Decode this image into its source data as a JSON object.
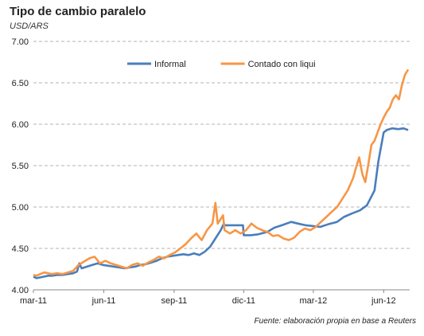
{
  "title": "Tipo de cambio paralelo",
  "subtitle": "USD/ARS",
  "source": "Fuente: elaboración propia en base a Reuters",
  "chart_data": {
    "type": "line",
    "ylim": [
      4.0,
      7.0
    ],
    "yticks": [
      "4.00",
      "4.50",
      "5.00",
      "5.50",
      "6.00",
      "6.50",
      "7.00"
    ],
    "ytick_values": [
      4.0,
      4.5,
      5.0,
      5.5,
      6.0,
      6.5,
      7.0
    ],
    "xlim": [
      "2011-03-01",
      "2012-07-05"
    ],
    "xticks": [
      {
        "label": "mar-11",
        "date": "2011-03-01"
      },
      {
        "label": "jun-11",
        "date": "2011-06-01"
      },
      {
        "label": "sep-11",
        "date": "2011-09-01"
      },
      {
        "label": "dic-11",
        "date": "2011-12-01"
      },
      {
        "label": "mar-12",
        "date": "2012-03-01"
      },
      {
        "label": "jun-12",
        "date": "2012-06-01"
      }
    ],
    "grid": "horizontal dashed",
    "legend_position": "top-center",
    "series": [
      {
        "name": "Informal",
        "color": "#4a7ebb",
        "points": [
          [
            "2011-03-01",
            4.16
          ],
          [
            "2011-03-05",
            4.14
          ],
          [
            "2011-03-10",
            4.15
          ],
          [
            "2011-03-15",
            4.16
          ],
          [
            "2011-03-20",
            4.17
          ],
          [
            "2011-03-25",
            4.17
          ],
          [
            "2011-04-01",
            4.18
          ],
          [
            "2011-04-08",
            4.18
          ],
          [
            "2011-04-15",
            4.19
          ],
          [
            "2011-04-22",
            4.2
          ],
          [
            "2011-04-27",
            4.22
          ],
          [
            "2011-04-30",
            4.32
          ],
          [
            "2011-05-03",
            4.26
          ],
          [
            "2011-05-10",
            4.28
          ],
          [
            "2011-05-17",
            4.3
          ],
          [
            "2011-05-24",
            4.32
          ],
          [
            "2011-05-31",
            4.3
          ],
          [
            "2011-06-07",
            4.29
          ],
          [
            "2011-06-14",
            4.28
          ],
          [
            "2011-06-21",
            4.27
          ],
          [
            "2011-06-28",
            4.26
          ],
          [
            "2011-07-05",
            4.27
          ],
          [
            "2011-07-12",
            4.28
          ],
          [
            "2011-07-19",
            4.3
          ],
          [
            "2011-07-26",
            4.31
          ],
          [
            "2011-08-02",
            4.33
          ],
          [
            "2011-08-09",
            4.35
          ],
          [
            "2011-08-16",
            4.38
          ],
          [
            "2011-08-23",
            4.4
          ],
          [
            "2011-08-30",
            4.41
          ],
          [
            "2011-09-06",
            4.42
          ],
          [
            "2011-09-13",
            4.43
          ],
          [
            "2011-09-20",
            4.42
          ],
          [
            "2011-09-27",
            4.44
          ],
          [
            "2011-10-04",
            4.42
          ],
          [
            "2011-10-11",
            4.46
          ],
          [
            "2011-10-18",
            4.52
          ],
          [
            "2011-10-25",
            4.62
          ],
          [
            "2011-11-01",
            4.72
          ],
          [
            "2011-11-05",
            4.8
          ],
          [
            "2011-11-06",
            4.78
          ],
          [
            "2011-11-30",
            4.78
          ],
          [
            "2011-12-01",
            4.66
          ],
          [
            "2011-12-10",
            4.66
          ],
          [
            "2011-12-20",
            4.67
          ],
          [
            "2012-01-01",
            4.7
          ],
          [
            "2012-01-10",
            4.75
          ],
          [
            "2012-01-20",
            4.78
          ],
          [
            "2012-02-01",
            4.82
          ],
          [
            "2012-02-10",
            4.8
          ],
          [
            "2012-02-20",
            4.78
          ],
          [
            "2012-03-01",
            4.77
          ],
          [
            "2012-03-10",
            4.76
          ],
          [
            "2012-03-20",
            4.79
          ],
          [
            "2012-04-01",
            4.82
          ],
          [
            "2012-04-10",
            4.88
          ],
          [
            "2012-04-20",
            4.92
          ],
          [
            "2012-05-01",
            4.96
          ],
          [
            "2012-05-10",
            5.02
          ],
          [
            "2012-05-20",
            5.2
          ],
          [
            "2012-05-25",
            5.55
          ],
          [
            "2012-06-01",
            5.9
          ],
          [
            "2012-06-05",
            5.93
          ],
          [
            "2012-06-12",
            5.95
          ],
          [
            "2012-06-20",
            5.94
          ],
          [
            "2012-06-27",
            5.95
          ],
          [
            "2012-07-03",
            5.93
          ]
        ]
      },
      {
        "name": "Contado con liqui",
        "color": "#f79646",
        "points": [
          [
            "2011-03-01",
            4.18
          ],
          [
            "2011-03-05",
            4.17
          ],
          [
            "2011-03-10",
            4.19
          ],
          [
            "2011-03-15",
            4.21
          ],
          [
            "2011-03-20",
            4.2
          ],
          [
            "2011-03-25",
            4.19
          ],
          [
            "2011-04-01",
            4.2
          ],
          [
            "2011-04-08",
            4.19
          ],
          [
            "2011-04-15",
            4.21
          ],
          [
            "2011-04-22",
            4.23
          ],
          [
            "2011-04-29",
            4.3
          ],
          [
            "2011-05-06",
            4.34
          ],
          [
            "2011-05-13",
            4.38
          ],
          [
            "2011-05-20",
            4.4
          ],
          [
            "2011-05-27",
            4.32
          ],
          [
            "2011-06-03",
            4.35
          ],
          [
            "2011-06-10",
            4.32
          ],
          [
            "2011-06-17",
            4.3
          ],
          [
            "2011-06-24",
            4.28
          ],
          [
            "2011-07-01",
            4.26
          ],
          [
            "2011-07-08",
            4.3
          ],
          [
            "2011-07-15",
            4.32
          ],
          [
            "2011-07-22",
            4.29
          ],
          [
            "2011-07-29",
            4.33
          ],
          [
            "2011-08-05",
            4.36
          ],
          [
            "2011-08-12",
            4.4
          ],
          [
            "2011-08-19",
            4.38
          ],
          [
            "2011-08-26",
            4.42
          ],
          [
            "2011-09-02",
            4.45
          ],
          [
            "2011-09-09",
            4.5
          ],
          [
            "2011-09-16",
            4.55
          ],
          [
            "2011-09-23",
            4.62
          ],
          [
            "2011-09-30",
            4.68
          ],
          [
            "2011-10-07",
            4.6
          ],
          [
            "2011-10-14",
            4.72
          ],
          [
            "2011-10-21",
            4.8
          ],
          [
            "2011-10-25",
            5.05
          ],
          [
            "2011-10-28",
            4.8
          ],
          [
            "2011-11-04",
            4.9
          ],
          [
            "2011-11-06",
            4.72
          ],
          [
            "2011-11-13",
            4.68
          ],
          [
            "2011-11-20",
            4.72
          ],
          [
            "2011-11-27",
            4.68
          ],
          [
            "2011-12-04",
            4.72
          ],
          [
            "2011-12-11",
            4.8
          ],
          [
            "2011-12-18",
            4.75
          ],
          [
            "2011-12-25",
            4.72
          ],
          [
            "2012-01-01",
            4.7
          ],
          [
            "2012-01-08",
            4.65
          ],
          [
            "2012-01-15",
            4.66
          ],
          [
            "2012-01-22",
            4.62
          ],
          [
            "2012-01-29",
            4.6
          ],
          [
            "2012-02-05",
            4.63
          ],
          [
            "2012-02-12",
            4.7
          ],
          [
            "2012-02-19",
            4.74
          ],
          [
            "2012-02-26",
            4.72
          ],
          [
            "2012-03-04",
            4.76
          ],
          [
            "2012-03-11",
            4.82
          ],
          [
            "2012-03-18",
            4.88
          ],
          [
            "2012-03-25",
            4.94
          ],
          [
            "2012-04-01",
            5.0
          ],
          [
            "2012-04-08",
            5.1
          ],
          [
            "2012-04-15",
            5.2
          ],
          [
            "2012-04-22",
            5.35
          ],
          [
            "2012-04-26",
            5.48
          ],
          [
            "2012-04-30",
            5.6
          ],
          [
            "2012-05-04",
            5.4
          ],
          [
            "2012-05-08",
            5.3
          ],
          [
            "2012-05-12",
            5.52
          ],
          [
            "2012-05-16",
            5.75
          ],
          [
            "2012-05-20",
            5.8
          ],
          [
            "2012-05-24",
            5.9
          ],
          [
            "2012-05-28",
            6.0
          ],
          [
            "2012-06-01",
            6.08
          ],
          [
            "2012-06-05",
            6.15
          ],
          [
            "2012-06-09",
            6.2
          ],
          [
            "2012-06-13",
            6.3
          ],
          [
            "2012-06-17",
            6.35
          ],
          [
            "2012-06-21",
            6.3
          ],
          [
            "2012-06-25",
            6.48
          ],
          [
            "2012-06-29",
            6.6
          ],
          [
            "2012-07-03",
            6.66
          ]
        ]
      }
    ]
  }
}
